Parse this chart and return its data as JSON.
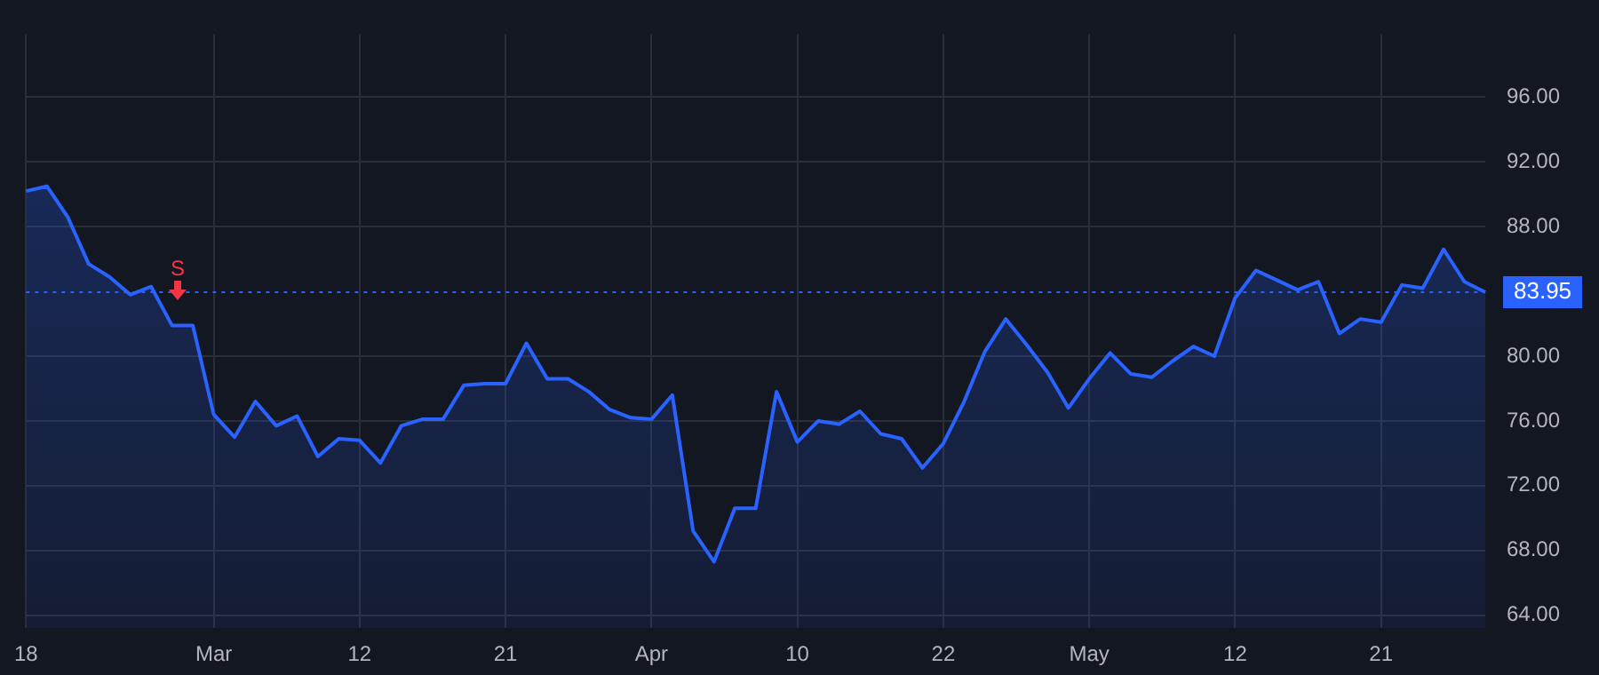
{
  "chart_data": {
    "type": "area",
    "categories": [
      "18",
      null,
      null,
      null,
      null,
      null,
      null,
      null,
      null,
      "Mar",
      null,
      null,
      null,
      null,
      null,
      null,
      "12",
      null,
      null,
      null,
      null,
      null,
      null,
      "21",
      null,
      null,
      null,
      null,
      null,
      null,
      "Apr",
      null,
      null,
      null,
      null,
      null,
      null,
      "10",
      null,
      null,
      null,
      null,
      null,
      null,
      "22",
      null,
      null,
      null,
      null,
      null,
      null,
      "May",
      null,
      null,
      null,
      null,
      null,
      null,
      "12",
      null,
      null,
      null,
      null,
      null,
      null,
      "21",
      null,
      null,
      null,
      null,
      null
    ],
    "series": [
      {
        "color": "#2962ff",
        "values": [
          90.2,
          90.5,
          88.6,
          85.7,
          84.9,
          83.8,
          84.3,
          81.9,
          81.9,
          76.4,
          75.0,
          77.2,
          75.7,
          76.3,
          73.8,
          74.9,
          74.8,
          73.4,
          75.7,
          76.1,
          76.1,
          78.2,
          78.3,
          78.3,
          80.8,
          78.6,
          78.6,
          77.8,
          76.7,
          76.2,
          76.1,
          77.6,
          69.2,
          67.3,
          70.6,
          70.6,
          77.8,
          74.7,
          76.0,
          75.8,
          76.6,
          75.2,
          74.9,
          73.1,
          74.6,
          77.2,
          80.3,
          82.3,
          80.7,
          79.0,
          76.8,
          78.6,
          80.2,
          78.9,
          78.7,
          79.7,
          80.6,
          80.0,
          83.6,
          85.3,
          84.7,
          84.1,
          84.6,
          81.4,
          82.3,
          82.1,
          84.4,
          84.2,
          86.6,
          84.6,
          83.95
        ]
      }
    ],
    "ylim": [
      63.2,
      99.9
    ],
    "yticks": [
      {
        "value": 64,
        "label": "64.00"
      },
      {
        "value": 68,
        "label": "68.00"
      },
      {
        "value": 72,
        "label": "72.00"
      },
      {
        "value": 76,
        "label": "76.00"
      },
      {
        "value": 80,
        "label": "80.00"
      },
      {
        "value": 88,
        "label": "88.00"
      },
      {
        "value": 92,
        "label": "92.00"
      },
      {
        "value": 96,
        "label": "96.00"
      }
    ],
    "grid": true,
    "ref_lines": [
      {
        "axis": "y",
        "value": 83.95,
        "label": "83.95",
        "color": "#2962ff",
        "line_style": "dotted"
      }
    ],
    "annotations": [
      "S"
    ]
  }
}
